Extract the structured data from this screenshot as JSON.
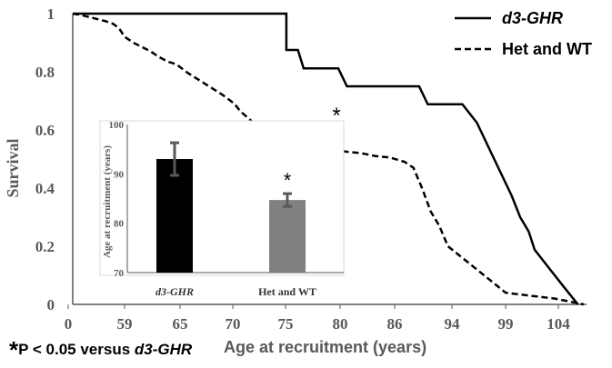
{
  "chart_data": {
    "type": "line",
    "title": "",
    "xlabel": "Age at recruitment (years)",
    "ylabel": "Survival",
    "x_tick_labels": [
      "0",
      "59",
      "65",
      "70",
      "75",
      "80",
      "86",
      "94",
      "99",
      "104"
    ],
    "y_tick_labels": [
      "0",
      "0.2",
      "0.4",
      "0.6",
      "0.8",
      "1"
    ],
    "ylim": [
      0,
      1
    ],
    "legend_position": "top-right",
    "series": [
      {
        "name": "d3-GHR",
        "style": "solid",
        "points": [
          [
            0,
            1
          ],
          [
            5,
            1
          ],
          [
            10,
            1
          ],
          [
            15,
            1
          ],
          [
            20,
            1
          ],
          [
            25,
            1
          ],
          [
            30,
            1
          ],
          [
            35,
            1
          ],
          [
            40,
            1
          ],
          [
            45,
            1
          ],
          [
            50,
            1
          ],
          [
            55,
            1
          ],
          [
            60,
            1
          ],
          [
            65,
            1
          ],
          [
            70,
            1
          ],
          [
            74,
            1
          ],
          [
            74,
            0.875
          ],
          [
            78,
            0.875
          ],
          [
            80,
            0.812
          ],
          [
            92,
            0.812
          ],
          [
            95,
            0.75
          ],
          [
            120,
            0.75
          ],
          [
            123,
            0.688
          ],
          [
            135,
            0.688
          ],
          [
            140,
            0.625
          ],
          [
            146,
            0.5
          ],
          [
            152,
            0.375
          ],
          [
            155,
            0.3
          ],
          [
            158,
            0.25
          ],
          [
            160,
            0.188
          ],
          [
            165,
            0.125
          ],
          [
            170,
            0.062
          ],
          [
            175,
            0
          ]
        ]
      },
      {
        "name": "Het and WT",
        "style": "dashed",
        "points": [
          [
            0,
            1
          ],
          [
            3,
            0.995
          ],
          [
            7,
            0.985
          ],
          [
            11,
            0.975
          ],
          [
            14,
            0.965
          ],
          [
            16,
            0.95
          ],
          [
            18,
            0.92
          ],
          [
            21,
            0.9
          ],
          [
            24,
            0.885
          ],
          [
            27,
            0.87
          ],
          [
            30,
            0.85
          ],
          [
            33,
            0.835
          ],
          [
            36,
            0.825
          ],
          [
            40,
            0.795
          ],
          [
            44,
            0.77
          ],
          [
            48,
            0.745
          ],
          [
            52,
            0.72
          ],
          [
            56,
            0.69
          ],
          [
            58,
            0.665
          ],
          [
            62,
            0.63
          ],
          [
            66,
            0.6
          ],
          [
            70,
            0.58
          ],
          [
            75,
            0.56
          ],
          [
            80,
            0.55
          ],
          [
            88,
            0.535
          ],
          [
            95,
            0.525
          ],
          [
            100,
            0.52
          ],
          [
            105,
            0.51
          ],
          [
            110,
            0.505
          ],
          [
            115,
            0.49
          ],
          [
            118,
            0.47
          ],
          [
            121,
            0.4
          ],
          [
            124,
            0.32
          ],
          [
            127,
            0.27
          ],
          [
            130,
            0.2
          ],
          [
            135,
            0.16
          ],
          [
            140,
            0.12
          ],
          [
            145,
            0.08
          ],
          [
            150,
            0.04
          ],
          [
            160,
            0.028
          ],
          [
            167,
            0.02
          ],
          [
            172,
            0.01
          ],
          [
            177,
            0
          ]
        ]
      }
    ],
    "annotations": [
      {
        "text": "*",
        "note": "between curves"
      }
    ],
    "inset": {
      "type": "bar",
      "ylabel": "Age at recruitment (years)",
      "ylim": [
        70,
        100
      ],
      "y_tick_labels": [
        "70",
        "80",
        "90",
        "100"
      ],
      "categories": [
        "d3-GHR",
        "Het and WT"
      ],
      "values": [
        93,
        84.7
      ],
      "errors": [
        3.3,
        1.3
      ],
      "colors": [
        "#000000",
        "#808080"
      ],
      "annotation": "*"
    }
  },
  "legend": {
    "items": [
      "d3-GHR",
      "Het and WT"
    ]
  },
  "footnote": {
    "star": "*",
    "text_before": "P < 0.05 versus ",
    "text_italic": "d3-GHR"
  },
  "colors": {
    "axis": "#595959",
    "line": "#000000"
  }
}
